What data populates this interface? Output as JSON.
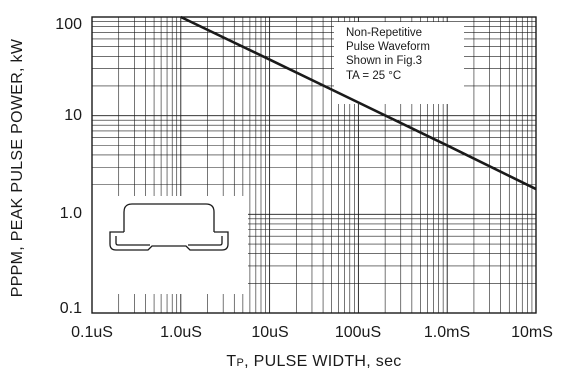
{
  "chart_data": {
    "type": "line",
    "title": "",
    "x_scale": "log",
    "y_scale": "log",
    "xlim": [
      "0.1uS",
      "10mS"
    ],
    "ylim": [
      0.1,
      100
    ],
    "xticks": [
      "0.1uS",
      "1.0uS",
      "10uS",
      "100uS",
      "1.0mS",
      "10mS"
    ],
    "yticks": [
      "0.1",
      "1.0",
      "10",
      "100"
    ],
    "ylabel": "PPPM, PEAK PULSE POWER, kW",
    "xlabel_main": "P",
    "xlabel_prefix": "T",
    "xlabel_rest": ", PULSE WIDTH, sec",
    "grid": true,
    "series": [
      {
        "x": [
          "1.0uS",
          "10uS",
          "100uS",
          "1.0mS",
          "10mS"
        ],
        "y": [
          100,
          37,
          13.6,
          5.0,
          1.8
        ]
      }
    ],
    "annotation": {
      "lines": [
        "Non-Repetitive",
        "Pulse Waveform",
        "Shown in Fig.3",
        "TA = 25 °C"
      ]
    },
    "colors": {
      "line": "#1a1a1a",
      "grid": "#1a1a1a",
      "background": "#ffffff"
    }
  },
  "icons": {
    "package": "smd-package-outline-icon"
  }
}
